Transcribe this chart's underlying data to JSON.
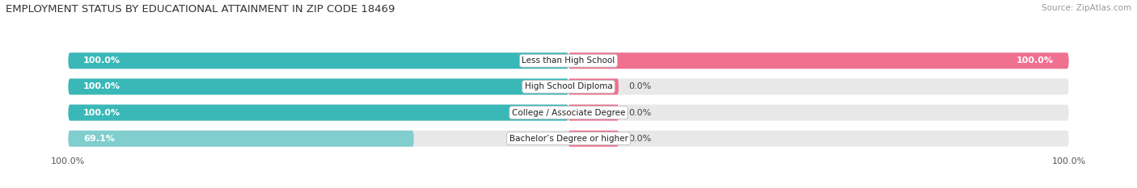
{
  "title": "EMPLOYMENT STATUS BY EDUCATIONAL ATTAINMENT IN ZIP CODE 18469",
  "source": "Source: ZipAtlas.com",
  "categories": [
    "Less than High School",
    "High School Diploma",
    "College / Associate Degree",
    "Bachelor’s Degree or higher"
  ],
  "in_labor_force": [
    100.0,
    100.0,
    100.0,
    69.1
  ],
  "unemployed": [
    100.0,
    0.0,
    0.0,
    0.0
  ],
  "color_labor": "#3ab8b8",
  "color_labor_light": "#80cece",
  "color_unemployed": "#f07090",
  "color_bg_bar": "#e8e8e8",
  "color_bg": "#ffffff",
  "left_axis_pct": "100.0%",
  "right_axis_pct": "100.0%",
  "title_fontsize": 9.5,
  "bar_label_fontsize": 8,
  "cat_label_fontsize": 7.5,
  "tick_fontsize": 8,
  "source_fontsize": 7.5,
  "legend_fontsize": 8
}
